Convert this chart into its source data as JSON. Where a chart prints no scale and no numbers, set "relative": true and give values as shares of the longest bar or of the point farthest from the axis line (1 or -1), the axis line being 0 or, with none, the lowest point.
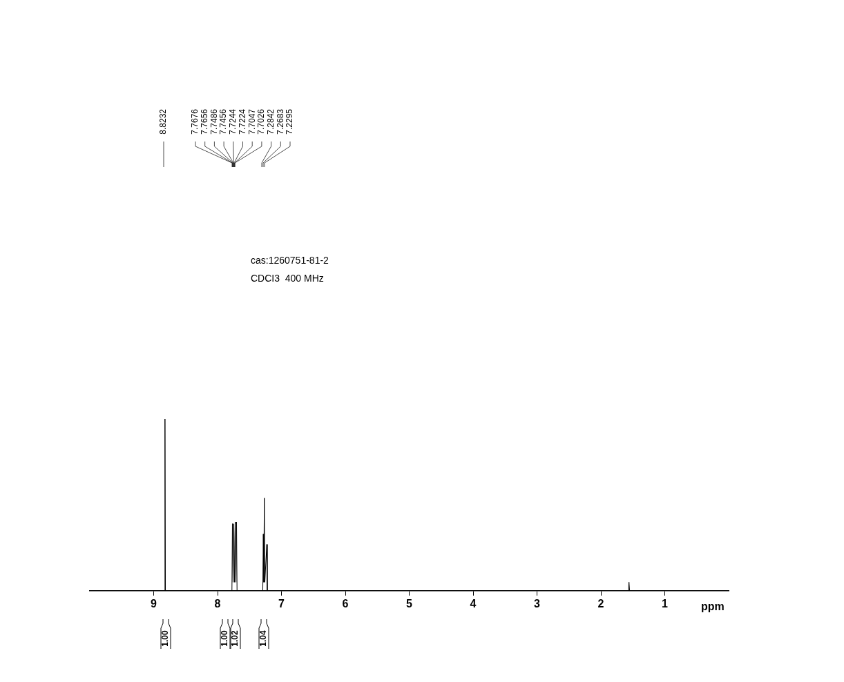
{
  "chart_data": {
    "type": "line",
    "relative": true,
    "xlabel": "ppm",
    "xlim": [
      10,
      0
    ],
    "xticks": [
      9,
      8,
      7,
      6,
      5,
      4,
      3,
      2,
      1
    ],
    "grid": false,
    "legend": false,
    "marker": "none",
    "line_style": "solid",
    "series": [
      {
        "color": "#000000",
        "x": [
          10,
          8.83,
          8.8232,
          8.816,
          7.775,
          7.7676,
          7.7656,
          7.757,
          7.7486,
          7.7456,
          7.735,
          7.7244,
          7.7224,
          7.713,
          7.7047,
          7.7026,
          7.695,
          7.292,
          7.2842,
          7.276,
          7.2683,
          7.26,
          7.2295,
          7.222,
          1.57,
          1.56,
          1.55,
          0
        ],
        "values": [
          0,
          0,
          1,
          0,
          0,
          0.39,
          0.38,
          0.05,
          0.38,
          0.39,
          0.05,
          0.4,
          0.39,
          0.05,
          0.4,
          0.39,
          0,
          0,
          0.33,
          0.05,
          0.54,
          0.05,
          0.27,
          0,
          0,
          0.05,
          0,
          0
        ]
      }
    ],
    "annotations": [
      "8.8232",
      "7.7676",
      "7.7656",
      "7.7486",
      "7.7456",
      "7.7244",
      "7.7224",
      "7.7047",
      "7.7026",
      "7.2842",
      "7.2683",
      "7.2295",
      "1.00",
      "1.00",
      "1.02",
      "1.04",
      "cas:1260751-81-2",
      "CDCI3  400 MHz"
    ]
  }
}
